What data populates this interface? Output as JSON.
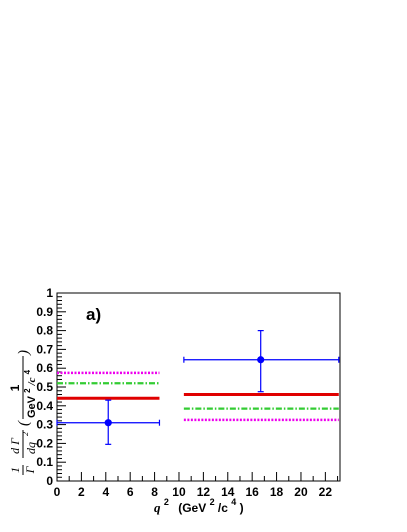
{
  "chart_data": {
    "type": "scatter",
    "panel_label": "a)",
    "xlabel": {
      "var": "q",
      "sup": "2",
      "unit_pre": "(GeV",
      "unit_sup1": "2",
      "unit_mid": "/c",
      "unit_sup2": "4",
      "unit_post": ")"
    },
    "ylabel": {
      "frac1_num": "1",
      "frac1_den": "Γ",
      "frac2_num": "d Γ",
      "frac2_den": "dq",
      "frac2_den_sup": "2",
      "paren_open": "(",
      "frac3_num": "1",
      "frac3_den": "GeV",
      "frac3_den_sup1": "2",
      "frac3_den_mid": "/c",
      "frac3_den_sup2": "4",
      "paren_close": ")"
    },
    "xlim": [
      0,
      23.2
    ],
    "ylim": [
      0,
      1
    ],
    "x_ticks": [
      "0",
      "2",
      "4",
      "6",
      "8",
      "10",
      "12",
      "14",
      "16",
      "18",
      "20",
      "22"
    ],
    "y_ticks": [
      "0",
      "0.1",
      "0.2",
      "0.3",
      "0.4",
      "0.5",
      "0.6",
      "0.7",
      "0.8",
      "0.9",
      "1"
    ],
    "data_points": [
      {
        "x": 4.2,
        "y": 0.31,
        "xerr_low": 4.2,
        "xerr_high": 4.2,
        "yerr_low": 0.115,
        "yerr_high": 0.12
      },
      {
        "x": 16.7,
        "y": 0.645,
        "xerr_low": 6.3,
        "xerr_high": 6.4,
        "yerr_low": 0.17,
        "yerr_high": 0.155
      }
    ],
    "bins": [
      [
        0,
        8.4
      ],
      [
        10.4,
        23.1
      ]
    ],
    "predictions": [
      {
        "color": "#e00000",
        "style": "solid",
        "values": [
          0.44,
          0.46
        ]
      },
      {
        "color": "#33cc33",
        "style": "dash-dot",
        "values": [
          0.52,
          0.385
        ]
      },
      {
        "color": "#ee00ee",
        "style": "dotted",
        "values": [
          0.575,
          0.325
        ]
      }
    ],
    "marker_color": "#0000ff"
  }
}
